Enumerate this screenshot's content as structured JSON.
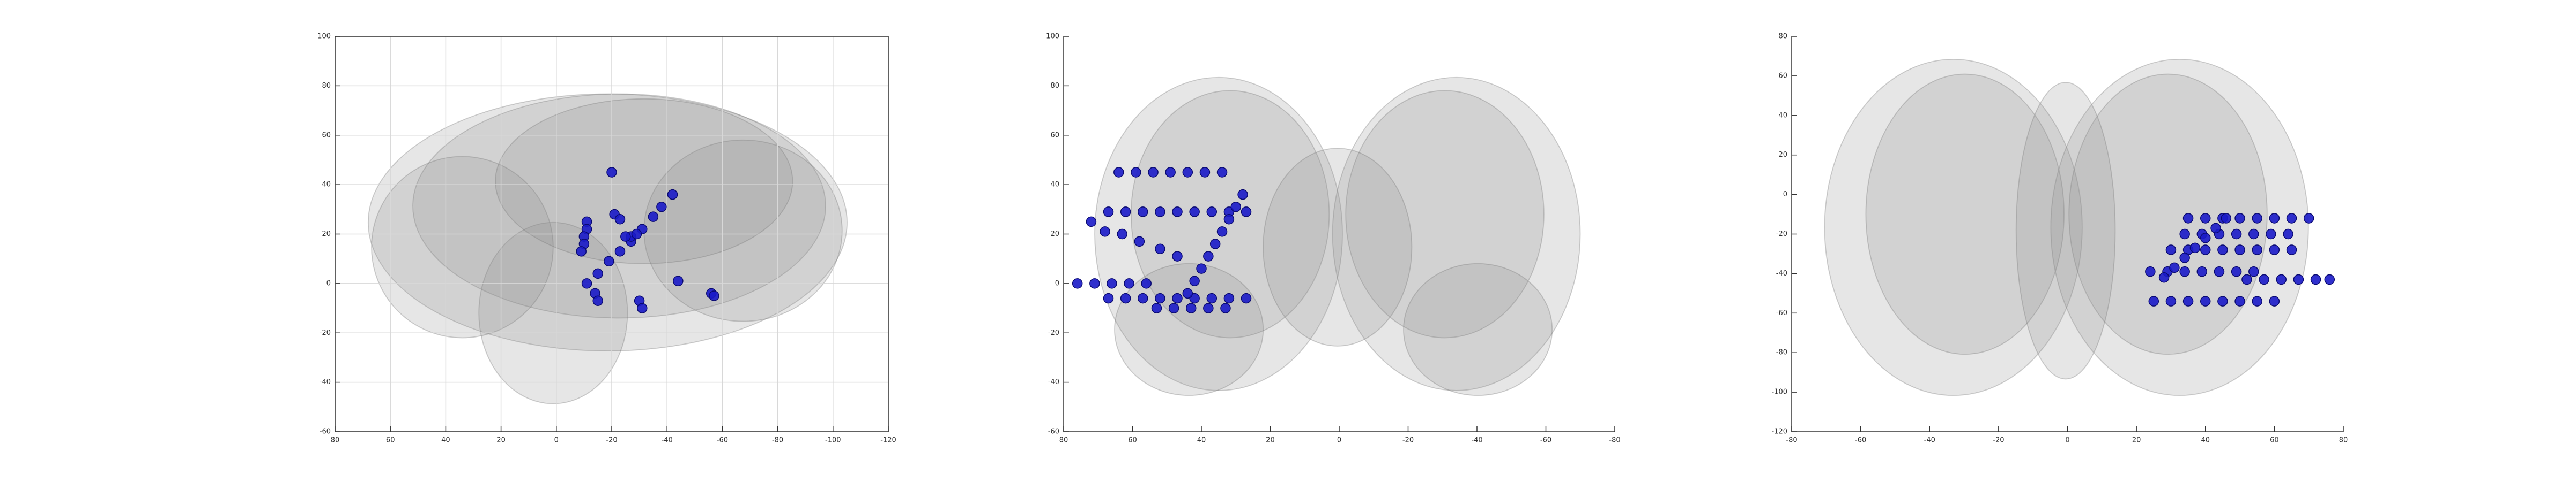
{
  "chart_data": [
    {
      "type": "scatter",
      "xlim": [
        80,
        -120
      ],
      "ylim": [
        -60,
        100
      ],
      "xticks": [
        80,
        60,
        40,
        20,
        0,
        -20,
        -40,
        -60,
        -80,
        -100,
        -120
      ],
      "yticks": [
        -60,
        -40,
        -20,
        0,
        20,
        40,
        60,
        80,
        100
      ],
      "grid": true,
      "series": [
        {
          "color": "#1a1ac8",
          "x": [
            -20,
            -11,
            -11,
            -10,
            -10,
            -9,
            -11,
            -15,
            -19,
            -23,
            -27,
            -31,
            -35,
            -38,
            -42,
            -21,
            -23,
            -30,
            -31,
            -44,
            -56,
            -57,
            -14,
            -15,
            -27,
            -29,
            -25
          ],
          "values": [
            45,
            25,
            22,
            19,
            16,
            13,
            0,
            4,
            9,
            13,
            17,
            22,
            27,
            31,
            36,
            28,
            26,
            -7,
            -10,
            1,
            -4,
            -5,
            -4,
            -7,
            19,
            20,
            19
          ]
        }
      ]
    },
    {
      "type": "scatter",
      "xlim": [
        80,
        -80
      ],
      "ylim": [
        -60,
        100
      ],
      "xticks": [
        80,
        60,
        40,
        20,
        0,
        -20,
        -40,
        -60,
        -80
      ],
      "yticks": [
        -60,
        -40,
        -20,
        0,
        20,
        40,
        60,
        80,
        100
      ],
      "grid": false,
      "series": [
        {
          "color": "#1a1ac8",
          "x": [
            64,
            59,
            54,
            49,
            44,
            39,
            34,
            67,
            62,
            57,
            52,
            47,
            42,
            37,
            32,
            27,
            72,
            68,
            63,
            58,
            52,
            47,
            76,
            71,
            66,
            61,
            56,
            67,
            62,
            57,
            52,
            47,
            42,
            37,
            32,
            27,
            53,
            48,
            43,
            38,
            33,
            28,
            30,
            32,
            34,
            36,
            38,
            40,
            42,
            44
          ],
          "values": [
            45,
            45,
            45,
            45,
            45,
            45,
            45,
            29,
            29,
            29,
            29,
            29,
            29,
            29,
            29,
            29,
            25,
            21,
            20,
            17,
            14,
            11,
            0,
            0,
            0,
            0,
            0,
            -6,
            -6,
            -6,
            -6,
            -6,
            -6,
            -6,
            -6,
            -6,
            -10,
            -10,
            -10,
            -10,
            -10,
            36,
            31,
            26,
            21,
            16,
            11,
            6,
            1,
            -4
          ]
        }
      ]
    },
    {
      "type": "scatter",
      "xlim": [
        -80,
        80
      ],
      "ylim": [
        -120,
        80
      ],
      "xticks": [
        -80,
        -60,
        -40,
        -20,
        0,
        20,
        40,
        60,
        80
      ],
      "yticks": [
        -120,
        -100,
        -80,
        -60,
        -40,
        -20,
        0,
        20,
        40,
        60,
        80
      ],
      "grid": false,
      "series": [
        {
          "color": "#1a1ac8",
          "x": [
            35,
            40,
            45,
            50,
            55,
            60,
            65,
            70,
            34,
            39,
            44,
            49,
            54,
            59,
            64,
            30,
            35,
            40,
            45,
            50,
            55,
            60,
            65,
            24,
            29,
            34,
            39,
            44,
            49,
            54,
            52,
            57,
            62,
            67,
            72,
            76,
            25,
            30,
            35,
            40,
            45,
            50,
            55,
            60,
            28,
            31,
            34,
            37,
            40,
            43,
            46
          ],
          "values": [
            -12,
            -12,
            -12,
            -12,
            -12,
            -12,
            -12,
            -12,
            -20,
            -20,
            -20,
            -20,
            -20,
            -20,
            -20,
            -28,
            -28,
            -28,
            -28,
            -28,
            -28,
            -28,
            -28,
            -39,
            -39,
            -39,
            -39,
            -39,
            -39,
            -39,
            -43,
            -43,
            -43,
            -43,
            -43,
            -43,
            -54,
            -54,
            -54,
            -54,
            -54,
            -54,
            -54,
            -54,
            -42,
            -37,
            -32,
            -27,
            -22,
            -17,
            -12
          ]
        }
      ]
    }
  ]
}
